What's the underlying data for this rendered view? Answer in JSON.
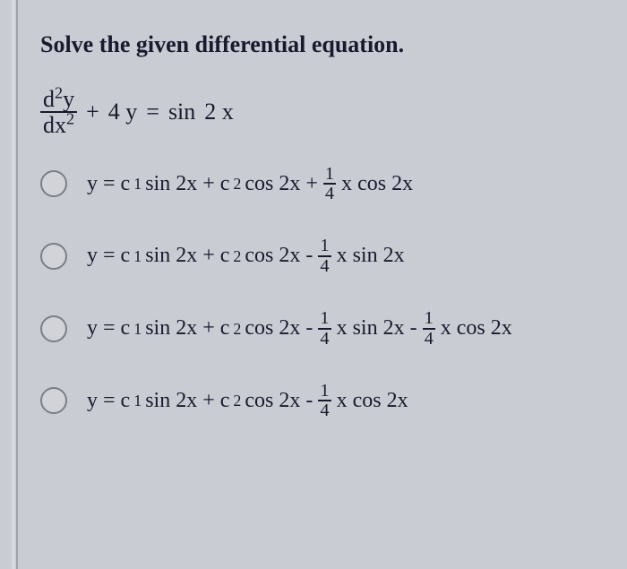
{
  "prompt": "Solve the given differential equation.",
  "equation": {
    "lhs_num_a": "d",
    "lhs_num_b": "y",
    "lhs_den_a": "dx",
    "plus": "+",
    "coef": "4 y",
    "eq": "=",
    "rhs_a": "sin",
    "rhs_b": "2 x"
  },
  "frac": {
    "num": "1",
    "den": "4"
  },
  "options": [
    {
      "pre": "y = c",
      "sub1": "1",
      "mid1": " sin 2x + c",
      "sub2": "2",
      "mid2": " cos 2x +",
      "tail": "x cos 2x",
      "tail2": ""
    },
    {
      "pre": "y = c",
      "sub1": "1",
      "mid1": " sin 2x + c",
      "sub2": "2",
      "mid2": " cos 2x -",
      "tail": "x sin 2x",
      "tail2": ""
    },
    {
      "pre": "y = c",
      "sub1": "1",
      "mid1": " sin 2x + c",
      "sub2": "2",
      "mid2": " cos 2x -",
      "tail": "x sin 2x -",
      "tail2": "x cos 2x"
    },
    {
      "pre": "y = c",
      "sub1": "1",
      "mid1": " sin 2x + c",
      "sub2": "2",
      "mid2": " cos 2x -",
      "tail": "x cos 2x",
      "tail2": ""
    }
  ]
}
